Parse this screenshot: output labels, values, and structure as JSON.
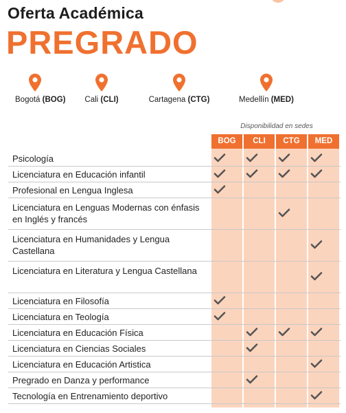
{
  "header": {
    "title": "Oferta Académica",
    "subtitle": "PREGRADO"
  },
  "locations": [
    {
      "city": "Bogotá",
      "code": "(BOG)"
    },
    {
      "city": "Cali",
      "code": "(CLI)"
    },
    {
      "city": "Cartagena",
      "code": "(CTG)"
    },
    {
      "city": "Medellín",
      "code": "(MED)"
    }
  ],
  "table": {
    "caption": "Disponibilidad en sedes",
    "columns": [
      "BOG",
      "CLI",
      "CTG",
      "MED"
    ],
    "programs": [
      {
        "name": "Psicología",
        "availability": [
          true,
          true,
          true,
          true
        ]
      },
      {
        "name": "Licenciatura en Educación infantil",
        "availability": [
          true,
          true,
          true,
          true
        ]
      },
      {
        "name": "Profesional en Lengua Inglesa",
        "availability": [
          true,
          false,
          false,
          false
        ]
      },
      {
        "name": "Licenciatura en Lenguas Modernas con énfasis en Inglés y francés",
        "availability": [
          false,
          false,
          true,
          false
        ]
      },
      {
        "name": "Licenciatura en Humanidades y Lengua Castellana",
        "availability": [
          false,
          false,
          false,
          true
        ]
      },
      {
        "name": "Licenciatura en Literatura y Lengua Castellana",
        "availability": [
          false,
          false,
          false,
          true
        ]
      },
      {
        "name": "Licenciatura en Filosofía",
        "availability": [
          true,
          false,
          false,
          false
        ]
      },
      {
        "name": "Licenciatura en Teología",
        "availability": [
          true,
          false,
          false,
          false
        ]
      },
      {
        "name": "Licenciatura en Educación Física",
        "availability": [
          false,
          true,
          true,
          true
        ]
      },
      {
        "name": "Licenciatura en Ciencias Sociales",
        "availability": [
          false,
          true,
          false,
          false
        ]
      },
      {
        "name": "Licenciatura en Educación Artistica",
        "availability": [
          false,
          false,
          false,
          true
        ]
      },
      {
        "name": "Pregrado en Danza y performance",
        "availability": [
          false,
          true,
          false,
          false
        ]
      },
      {
        "name": "Tecnología en Entrenamiento deportivo",
        "availability": [
          false,
          false,
          false,
          true
        ]
      }
    ]
  },
  "colors": {
    "accent": "#f0702f",
    "column_fill": "#fbd4bd",
    "check": "#555555"
  },
  "icons": {
    "location": "map-pin-icon",
    "available": "checkmark-icon"
  }
}
